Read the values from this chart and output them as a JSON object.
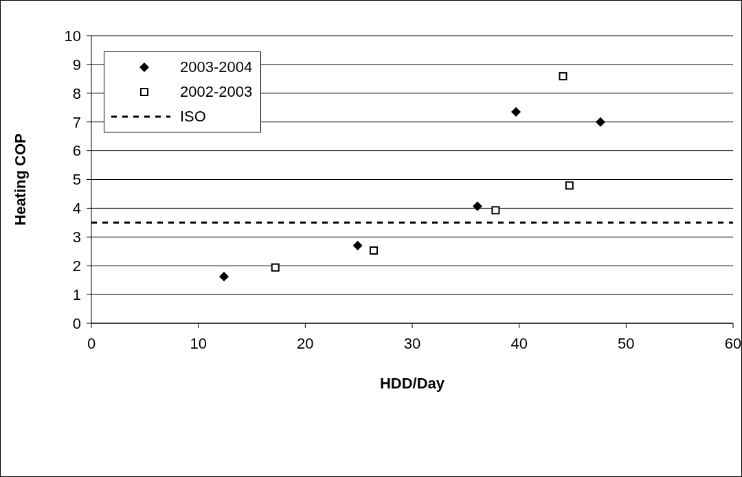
{
  "chart_data": {
    "type": "scatter",
    "xlabel": "HDD/Day",
    "ylabel": "Heating COP",
    "xlim": [
      0,
      60
    ],
    "xticks": [
      0,
      10,
      20,
      30,
      40,
      50,
      60
    ],
    "ylim": [
      0,
      10
    ],
    "yticks": [
      0,
      1,
      2,
      3,
      4,
      5,
      6,
      7,
      8,
      9,
      10
    ],
    "grid": "y",
    "legend": "top left",
    "series": [
      {
        "name": "2003-2004",
        "color": "#000000",
        "marker": "diamond",
        "x": [
          12.4,
          24.9,
          36.1,
          39.7,
          47.6
        ],
        "values": [
          1.62,
          2.7,
          4.07,
          7.35,
          7.0
        ]
      },
      {
        "name": "2002-2003",
        "color": "#000000",
        "marker": "square",
        "x": [
          17.2,
          26.4,
          37.8,
          44.1,
          44.7
        ],
        "values": [
          1.94,
          2.53,
          3.93,
          8.59,
          4.79
        ]
      }
    ],
    "ref_lines": [
      {
        "axis": "y",
        "value": 3.5,
        "label": "ISO",
        "color": "#000000",
        "line_style": "dashed"
      }
    ]
  }
}
